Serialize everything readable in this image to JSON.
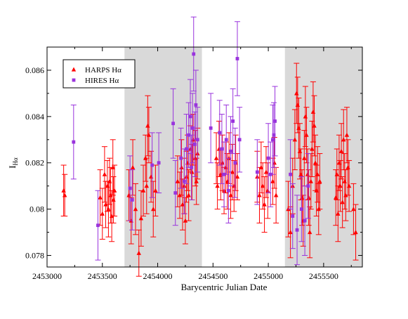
{
  "chart_data": {
    "type": "scatter",
    "title": "",
    "xlabel": "Barycentric Julian Date",
    "ylabel": "I",
    "ylabel_subscript": "Hα",
    "xlim": [
      2453000,
      2455850
    ],
    "ylim": [
      0.0775,
      0.087
    ],
    "x_ticks": [
      2453000,
      2453500,
      2454000,
      2454500,
      2455000,
      2455500
    ],
    "x_tick_labels": [
      "2453000",
      "2453500",
      "2454000",
      "2454500",
      "2455000",
      "2455500"
    ],
    "y_ticks": [
      0.078,
      0.08,
      0.082,
      0.084,
      0.086
    ],
    "y_tick_labels": [
      "0.078",
      "0.08",
      "0.082",
      "0.084",
      "0.086"
    ],
    "grid": false,
    "legend_position": "top-left",
    "shaded_regions": [
      {
        "x_start": 2453700,
        "x_end": 2454400
      },
      {
        "x_start": 2455150,
        "x_end": 2455850
      }
    ],
    "colors": {
      "harps": "#ff0000",
      "hires": "#9933dd",
      "shade": "#d9d9d9"
    },
    "series": [
      {
        "name": "HARPS Hα",
        "marker": "triangle",
        "color": "#ff0000",
        "points": [
          [
            2453150,
            0.0808,
            0.0011
          ],
          [
            2453160,
            0.0806,
            0.0009
          ],
          [
            2453480,
            0.0805,
            0.0012
          ],
          [
            2453500,
            0.0798,
            0.0011
          ],
          [
            2453520,
            0.0815,
            0.0012
          ],
          [
            2453530,
            0.0802,
            0.001
          ],
          [
            2453545,
            0.081,
            0.0011
          ],
          [
            2453555,
            0.08,
            0.0012
          ],
          [
            2453565,
            0.0812,
            0.001
          ],
          [
            2453575,
            0.0806,
            0.0012
          ],
          [
            2453585,
            0.0797,
            0.0011
          ],
          [
            2453595,
            0.0818,
            0.0012
          ],
          [
            2453600,
            0.0804,
            0.001
          ],
          [
            2453610,
            0.0808,
            0.0011
          ],
          [
            2453740,
            0.0806,
            0.0011
          ],
          [
            2453760,
            0.0795,
            0.001
          ],
          [
            2453775,
            0.0818,
            0.0012
          ],
          [
            2453800,
            0.08,
            0.0011
          ],
          [
            2453830,
            0.0781,
            0.001
          ],
          [
            2453850,
            0.0796,
            0.0012
          ],
          [
            2453870,
            0.0808,
            0.0011
          ],
          [
            2453890,
            0.0822,
            0.001
          ],
          [
            2453900,
            0.081,
            0.0012
          ],
          [
            2453910,
            0.0836,
            0.0013
          ],
          [
            2453920,
            0.0832,
            0.0012
          ],
          [
            2453940,
            0.0814,
            0.0011
          ],
          [
            2453960,
            0.08,
            0.0012
          ],
          [
            2453980,
            0.0808,
            0.0011
          ],
          [
            2454180,
            0.0812,
            0.0011
          ],
          [
            2454200,
            0.0806,
            0.001
          ],
          [
            2454215,
            0.0818,
            0.0012
          ],
          [
            2454225,
            0.0802,
            0.0011
          ],
          [
            2454240,
            0.081,
            0.0012
          ],
          [
            2454250,
            0.0795,
            0.001
          ],
          [
            2454260,
            0.0814,
            0.0011
          ],
          [
            2454270,
            0.082,
            0.0012
          ],
          [
            2454280,
            0.0806,
            0.0011
          ],
          [
            2454295,
            0.0826,
            0.001
          ],
          [
            2454310,
            0.0816,
            0.0012
          ],
          [
            2454320,
            0.083,
            0.0011
          ],
          [
            2454340,
            0.0822,
            0.0012
          ],
          [
            2454350,
            0.0812,
            0.001
          ],
          [
            2454360,
            0.0824,
            0.0011
          ],
          [
            2454530,
            0.0822,
            0.0011
          ],
          [
            2454540,
            0.081,
            0.001
          ],
          [
            2454555,
            0.0826,
            0.0012
          ],
          [
            2454570,
            0.0815,
            0.0011
          ],
          [
            2454585,
            0.082,
            0.0012
          ],
          [
            2454600,
            0.0808,
            0.001
          ],
          [
            2454615,
            0.0818,
            0.0011
          ],
          [
            2454630,
            0.0812,
            0.0012
          ],
          [
            2454645,
            0.0822,
            0.0011
          ],
          [
            2454660,
            0.0806,
            0.001
          ],
          [
            2454675,
            0.0816,
            0.0012
          ],
          [
            2454690,
            0.081,
            0.0011
          ],
          [
            2454705,
            0.082,
            0.0012
          ],
          [
            2454720,
            0.0814,
            0.001
          ],
          [
            2454900,
            0.0814,
            0.0011
          ],
          [
            2454920,
            0.0806,
            0.0012
          ],
          [
            2454935,
            0.0818,
            0.0011
          ],
          [
            2454950,
            0.081,
            0.001
          ],
          [
            2454965,
            0.0802,
            0.0012
          ],
          [
            2454980,
            0.0816,
            0.0011
          ],
          [
            2454995,
            0.0808,
            0.0012
          ],
          [
            2455040,
            0.0812,
            0.001
          ],
          [
            2455055,
            0.082,
            0.0011
          ],
          [
            2455070,
            0.0806,
            0.0012
          ],
          [
            2455180,
            0.08,
            0.0012
          ],
          [
            2455200,
            0.079,
            0.0011
          ],
          [
            2455220,
            0.081,
            0.0012
          ],
          [
            2455240,
            0.083,
            0.0013
          ],
          [
            2455255,
            0.085,
            0.0013
          ],
          [
            2455265,
            0.0845,
            0.0012
          ],
          [
            2455275,
            0.0835,
            0.0013
          ],
          [
            2455285,
            0.0825,
            0.0012
          ],
          [
            2455295,
            0.0815,
            0.0011
          ],
          [
            2455305,
            0.0805,
            0.0012
          ],
          [
            2455315,
            0.0795,
            0.0011
          ],
          [
            2455325,
            0.0822,
            0.0012
          ],
          [
            2455335,
            0.084,
            0.0013
          ],
          [
            2455345,
            0.0832,
            0.0012
          ],
          [
            2455355,
            0.0815,
            0.0011
          ],
          [
            2455365,
            0.0805,
            0.0012
          ],
          [
            2455375,
            0.079,
            0.0011
          ],
          [
            2455385,
            0.0812,
            0.0012
          ],
          [
            2455395,
            0.0826,
            0.0012
          ],
          [
            2455405,
            0.0842,
            0.0013
          ],
          [
            2455415,
            0.0836,
            0.0013
          ],
          [
            2455425,
            0.082,
            0.0012
          ],
          [
            2455435,
            0.0808,
            0.0011
          ],
          [
            2455445,
            0.0815,
            0.0012
          ],
          [
            2455455,
            0.08,
            0.0011
          ],
          [
            2455465,
            0.0812,
            0.0012
          ],
          [
            2455610,
            0.0805,
            0.0012
          ],
          [
            2455620,
            0.0815,
            0.0011
          ],
          [
            2455630,
            0.0798,
            0.0012
          ],
          [
            2455640,
            0.082,
            0.0012
          ],
          [
            2455650,
            0.081,
            0.0011
          ],
          [
            2455660,
            0.0825,
            0.0012
          ],
          [
            2455670,
            0.0803,
            0.0011
          ],
          [
            2455680,
            0.083,
            0.0013
          ],
          [
            2455690,
            0.0812,
            0.0012
          ],
          [
            2455700,
            0.0806,
            0.0011
          ],
          [
            2455710,
            0.0832,
            0.0012
          ],
          [
            2455720,
            0.0818,
            0.0012
          ],
          [
            2455730,
            0.081,
            0.0011
          ],
          [
            2455770,
            0.08,
            0.0011
          ],
          [
            2455790,
            0.079,
            0.0012
          ]
        ]
      },
      {
        "name": "HIRES Hα",
        "marker": "square",
        "color": "#9933dd",
        "points": [
          [
            2453240,
            0.0829,
            0.0016
          ],
          [
            2453460,
            0.0793,
            0.0015
          ],
          [
            2453750,
            0.0809,
            0.0014
          ],
          [
            2453770,
            0.0804,
            0.0013
          ],
          [
            2453950,
            0.0819,
            0.0014
          ],
          [
            2454010,
            0.082,
            0.0013
          ],
          [
            2454140,
            0.0837,
            0.0015
          ],
          [
            2454160,
            0.0807,
            0.0014
          ],
          [
            2454210,
            0.0822,
            0.0013
          ],
          [
            2454240,
            0.0812,
            0.0014
          ],
          [
            2454260,
            0.0826,
            0.0015
          ],
          [
            2454280,
            0.0832,
            0.0014
          ],
          [
            2454295,
            0.084,
            0.0016
          ],
          [
            2454305,
            0.0818,
            0.0014
          ],
          [
            2454315,
            0.0835,
            0.0015
          ],
          [
            2454325,
            0.0867,
            0.0016
          ],
          [
            2454335,
            0.0828,
            0.0014
          ],
          [
            2454345,
            0.0845,
            0.0015
          ],
          [
            2454360,
            0.083,
            0.0014
          ],
          [
            2454480,
            0.0835,
            0.0015
          ],
          [
            2454560,
            0.0833,
            0.0014
          ],
          [
            2454580,
            0.0826,
            0.0015
          ],
          [
            2454600,
            0.0815,
            0.0014
          ],
          [
            2454620,
            0.083,
            0.0015
          ],
          [
            2454640,
            0.0808,
            0.0014
          ],
          [
            2454660,
            0.0825,
            0.0015
          ],
          [
            2454680,
            0.0838,
            0.0014
          ],
          [
            2454700,
            0.082,
            0.0015
          ],
          [
            2454720,
            0.0865,
            0.0016
          ],
          [
            2454740,
            0.083,
            0.0014
          ],
          [
            2454900,
            0.0816,
            0.0014
          ],
          [
            2455000,
            0.0822,
            0.0015
          ],
          [
            2455020,
            0.0815,
            0.0014
          ],
          [
            2455040,
            0.083,
            0.0015
          ],
          [
            2455050,
            0.0832,
            0.0014
          ],
          [
            2455060,
            0.0838,
            0.0015
          ],
          [
            2455200,
            0.0815,
            0.0015
          ],
          [
            2455220,
            0.0797,
            0.0014
          ],
          [
            2455260,
            0.0791,
            0.0015
          ],
          [
            2455300,
            0.08,
            0.0014
          ],
          [
            2455330,
            0.0795,
            0.0015
          ],
          [
            2455360,
            0.081,
            0.0014
          ]
        ]
      }
    ]
  }
}
